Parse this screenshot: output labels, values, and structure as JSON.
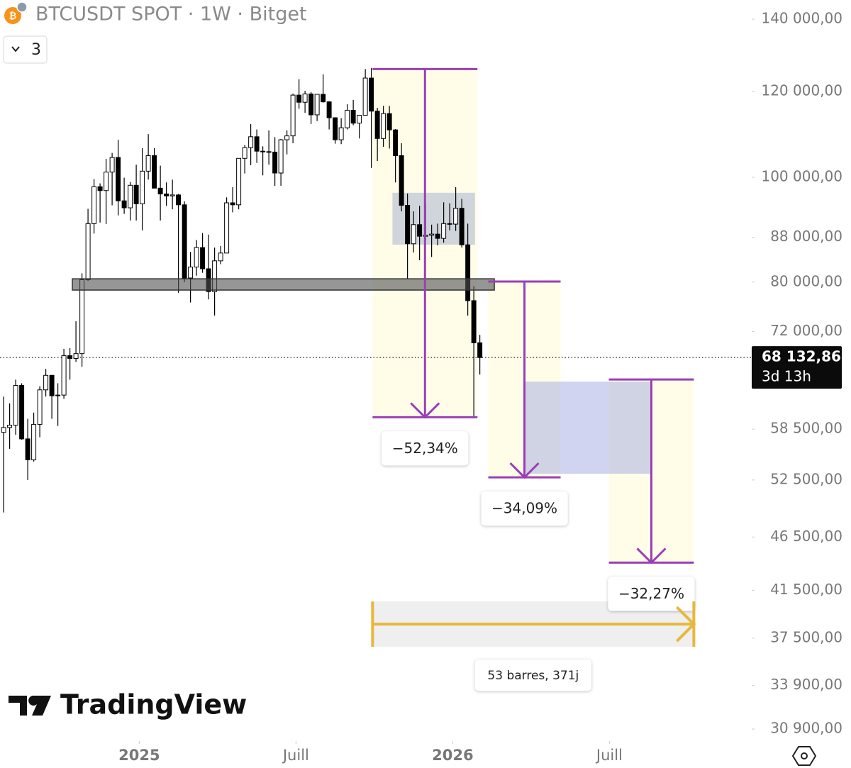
{
  "header": {
    "title": "BTCUSDT SPOT · 1W · Bitget",
    "dropdown": "3"
  },
  "branding": "TradingView",
  "chart_data": {
    "type": "candlestick",
    "title": "BTCUSDT SPOT · 1W · Bitget",
    "log_scale": true,
    "up_color": "#ffffff",
    "down_color": "#000000",
    "open": [
      58100,
      58700,
      59000,
      64200,
      57300,
      54800,
      59100,
      63600,
      65600,
      62800,
      62900,
      68400,
      68000,
      68700,
      80400,
      90600,
      98000,
      97200,
      101100,
      104300,
      95100,
      93700,
      98300,
      94500,
      101300,
      104700,
      97700,
      96500,
      96100,
      96300,
      94300,
      80700,
      82600,
      86100,
      82300,
      78400,
      83700,
      85100,
      94700,
      94300,
      104100,
      106500,
      109000,
      105700,
      105600,
      105500,
      100900,
      108300,
      109200,
      119100,
      117300,
      119400,
      114200,
      119300,
      117400,
      113500,
      108300,
      111100,
      115300,
      112200,
      114100,
      123500,
      115100,
      108600,
      114500,
      110600,
      104700,
      94200,
      86800,
      90400,
      88200,
      88400,
      88600,
      87800,
      90600,
      90500,
      93600,
      86600,
      76900,
      70300
    ],
    "high": [
      62700,
      61800,
      65000,
      64500,
      59800,
      60600,
      64100,
      66500,
      65600,
      64500,
      69400,
      69500,
      73600,
      81500,
      93500,
      99600,
      98700,
      104000,
      105300,
      108300,
      99900,
      99000,
      102700,
      106400,
      109600,
      106400,
      102500,
      98900,
      99500,
      96500,
      95000,
      85300,
      87500,
      88800,
      88500,
      86100,
      86400,
      95800,
      97900,
      104100,
      107100,
      112000,
      110700,
      106800,
      110500,
      108900,
      108500,
      110500,
      119500,
      123200,
      120200,
      119900,
      119300,
      124500,
      117600,
      113600,
      113400,
      116800,
      117900,
      113300,
      125900,
      126200,
      115900,
      116400,
      116400,
      110800,
      107500,
      96600,
      93000,
      94100,
      94600,
      90400,
      90600,
      94800,
      94600,
      97900,
      95500,
      90600,
      79300,
      71500
    ],
    "low": [
      49000,
      56100,
      57800,
      57200,
      52500,
      54600,
      57500,
      62700,
      59800,
      58900,
      62400,
      65000,
      67500,
      66800,
      80200,
      88700,
      90800,
      90500,
      94200,
      92200,
      92500,
      91200,
      91200,
      89300,
      99500,
      97700,
      91200,
      94100,
      93400,
      78200,
      80000,
      76600,
      81100,
      81600,
      77100,
      74500,
      83100,
      85100,
      92800,
      93400,
      100800,
      102600,
      103100,
      100400,
      102700,
      98200,
      98200,
      105000,
      107500,
      115700,
      114700,
      112000,
      112700,
      117200,
      110700,
      107400,
      107300,
      110700,
      111700,
      108600,
      114000,
      102000,
      103500,
      106700,
      106300,
      98900,
      93000,
      80600,
      85200,
      83800,
      87600,
      84400,
      86500,
      87000,
      89300,
      89200,
      86100,
      74500,
      60000,
      65700
    ],
    "close": [
      58700,
      59000,
      64200,
      57300,
      54800,
      59100,
      63600,
      65600,
      62800,
      62900,
      68400,
      68000,
      68700,
      80400,
      90600,
      98000,
      97200,
      101100,
      104300,
      95100,
      93700,
      98300,
      94500,
      101300,
      104700,
      97700,
      96500,
      96100,
      96300,
      94300,
      80700,
      82600,
      86100,
      82300,
      78400,
      83700,
      85100,
      94700,
      94300,
      104100,
      106500,
      109000,
      105700,
      105600,
      105500,
      100900,
      108300,
      109200,
      119100,
      117300,
      119400,
      114200,
      119300,
      117400,
      113500,
      108300,
      111100,
      115300,
      112200,
      114100,
      123500,
      115100,
      108600,
      114500,
      110600,
      104700,
      94200,
      86800,
      90400,
      88200,
      88400,
      88600,
      87800,
      90600,
      90500,
      93600,
      86600,
      76900,
      70300,
      68132.86
    ],
    "xlim": [
      -0.6,
      124.1
    ],
    "xticks": [
      {
        "value": 22.5,
        "label": "2025"
      },
      {
        "value": 48.5,
        "label": "Juill"
      },
      {
        "value": 74.5,
        "label": "2026"
      },
      {
        "value": 100.5,
        "label": "Juill"
      }
    ],
    "ylim": [
      30120,
      145820
    ],
    "yticks": [
      {
        "value": 140000,
        "label": "140 000,00"
      },
      {
        "value": 120000,
        "label": "120 000,00"
      },
      {
        "value": 100000,
        "label": "100 000,00"
      },
      {
        "value": 88000,
        "label": "88 000,00"
      },
      {
        "value": 80000,
        "label": "80 000,00"
      },
      {
        "value": 72000,
        "label": "72 000,00"
      },
      {
        "value": 58500,
        "label": "58 500,00"
      },
      {
        "value": 52500,
        "label": "52 500,00"
      },
      {
        "value": 46500,
        "label": "46 500,00"
      },
      {
        "value": 41500,
        "label": "41 500,00"
      },
      {
        "value": 37500,
        "label": "37 500,00"
      },
      {
        "value": 33900,
        "label": "33 900,00"
      },
      {
        "value": 30900,
        "label": "30 900,00"
      }
    ],
    "last_price": {
      "value": 68132.86,
      "label": "68 132,86"
    },
    "countdown": "3d 13h",
    "zones": [
      {
        "x": [
          64.5,
          78.2
        ],
        "y": [
          96750,
          86630
        ],
        "color": "rgba(150,165,205,0.45)"
      },
      {
        "x": [
          86.5,
          107.4
        ],
        "y": [
          64730,
          53200
        ],
        "color": "rgba(150,160,225,0.45)"
      },
      {
        "x": [
          11.4,
          81.4
        ],
        "y": [
          80560,
          78650
        ],
        "color": "rgba(80,80,80,0.6)"
      }
    ],
    "measures": [
      {
        "x": [
          61.2,
          78.6
        ],
        "from": 125900,
        "to": 60000,
        "label": "−52,34%",
        "color": "#9b3fb5"
      },
      {
        "x": [
          80.4,
          92.4
        ],
        "from": 80090,
        "to": 52800,
        "label": "−34,09%",
        "color": "#9b3fb5"
      },
      {
        "x": [
          100.4,
          114.5
        ],
        "from": 65020,
        "to": 44030,
        "label": "−32,27%",
        "color": "#9b3fb5"
      }
    ],
    "time_range": {
      "x": [
        61.2,
        114.5
      ],
      "y": [
        40540,
        36810
      ],
      "label": "53 barres, 371j",
      "color": "#e6b83a"
    }
  }
}
